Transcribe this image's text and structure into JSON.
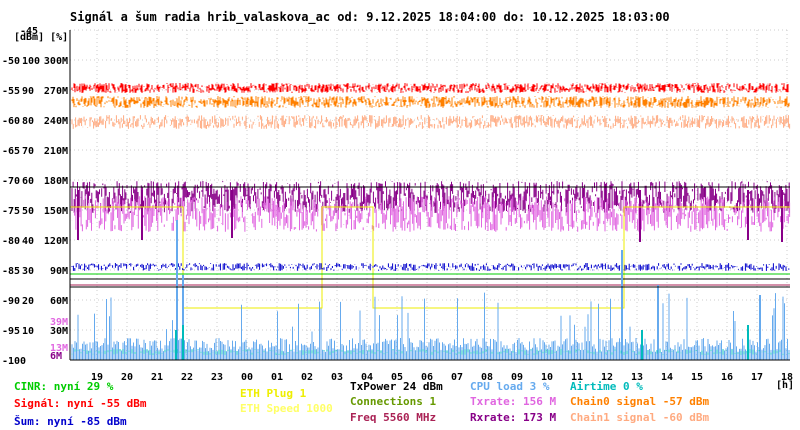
{
  "title": "Signál a šum radia hrib_valaskova_ac od: 9.12.2025 18:04:00 do: 10.12.2025 18:03:00",
  "y_units": "[dBm] [%]",
  "colors": {
    "signal": "#ff0000",
    "chain0": "#ff8000",
    "chain1": "#ffaa80",
    "txrate": "#e066e0",
    "rxrate": "#880088",
    "noise": "#0000cc",
    "cinr": "#00cc00",
    "connections": "#669900",
    "cpu": "#66aaee",
    "airtime": "#00bbbb",
    "eth_plug": "#eeee00",
    "eth_speed": "#ffff66",
    "txpower": "#000000",
    "freq": "#aa2255"
  },
  "legend": {
    "cinr": "CINR: nyní 29 %",
    "signal": "Signál: nyní -55 dBm",
    "noise": "Šum: nyní -85 dBm",
    "eth_plug": "ETH Plug 1",
    "eth_speed": "ETH Speed 1000",
    "txpower": "TxPower 24 dBm",
    "connections": "Connections 1",
    "freq": "Freq 5560 MHz",
    "cpu": "CPU load 3 %",
    "txrate": "Txrate: 156 M",
    "rxrate": "Rxrate: 173 M",
    "airtime": "Airtime 0 %",
    "chain0": "Chain0 signal -57 dBm",
    "chain1": "Chain1 signal -60 dBm"
  },
  "chart_data": {
    "type": "line",
    "title": "Signál a šum radia hrib_valaskova_ac od: 9.12.2025 18:04:00 do: 10.12.2025 18:03:00",
    "xlabel": "[h]",
    "x_ticks": [
      "19",
      "20",
      "21",
      "22",
      "23",
      "00",
      "01",
      "02",
      "03",
      "04",
      "05",
      "06",
      "07",
      "08",
      "09",
      "10",
      "11",
      "12",
      "13",
      "14",
      "15",
      "16",
      "17",
      "18"
    ],
    "y_ticks_dbm": [
      "-45",
      "-50",
      "-55",
      "-60",
      "-65",
      "-70",
      "-75",
      "-80",
      "-85",
      "-90",
      "-95",
      "-100"
    ],
    "y_ticks_pct": [
      "100",
      "90",
      "80",
      "70",
      "60",
      "50",
      "40",
      "30",
      "20",
      "10"
    ],
    "y_ticks_rate": [
      "300M",
      "270M",
      "240M",
      "210M",
      "180M",
      "150M",
      "120M",
      "90M",
      "60M",
      "30M"
    ],
    "extra_labels": [
      "39M",
      "13M",
      "6M"
    ],
    "ylim_dbm": [
      -100,
      -45
    ],
    "grid": true,
    "series": [
      {
        "name": "Signál",
        "unit": "dBm",
        "level": -55
      },
      {
        "name": "Chain0 signal",
        "unit": "dBm",
        "level": -57
      },
      {
        "name": "Chain1 signal",
        "unit": "dBm",
        "level": -60
      },
      {
        "name": "Šum",
        "unit": "dBm",
        "level": -85
      },
      {
        "name": "CINR",
        "unit": "%",
        "level": 29
      },
      {
        "name": "Txrate",
        "unit": "M",
        "level": 156
      },
      {
        "name": "Rxrate",
        "unit": "M",
        "level": 173
      },
      {
        "name": "CPU load",
        "unit": "%",
        "level": 3
      },
      {
        "name": "Airtime",
        "unit": "%",
        "level": 0
      },
      {
        "name": "TxPower",
        "unit": "dBm",
        "level": 24
      },
      {
        "name": "Connections",
        "level": 1
      },
      {
        "name": "ETH Plug",
        "level": 1
      },
      {
        "name": "ETH Speed",
        "level": 1000
      }
    ]
  }
}
